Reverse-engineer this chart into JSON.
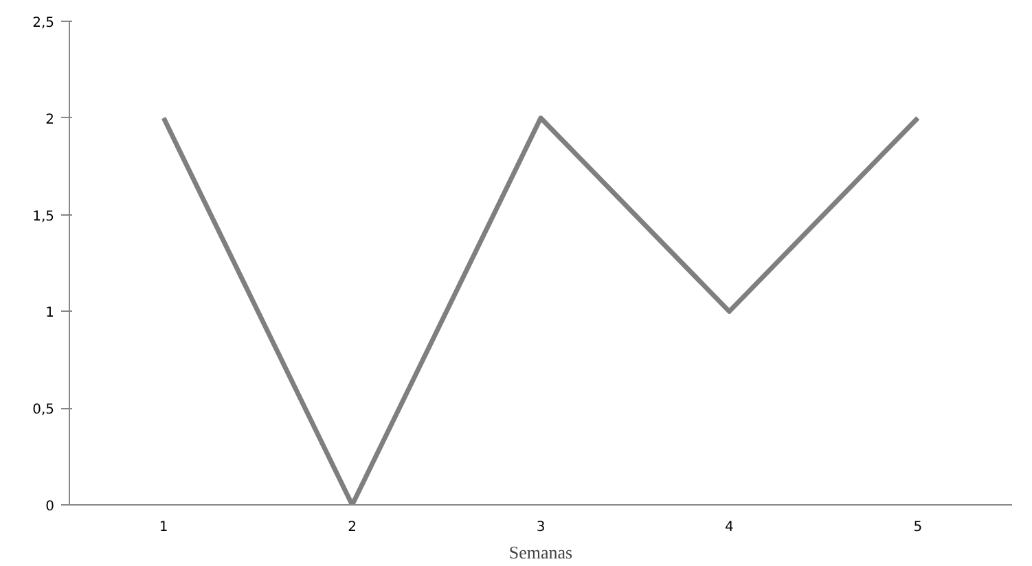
{
  "chart_data": {
    "type": "line",
    "xlabel": "Semanas",
    "categories": [
      "1",
      "2",
      "3",
      "4",
      "5"
    ],
    "series": [
      {
        "color": "#7f7f7f",
        "values": [
          2,
          0,
          2,
          1,
          2
        ]
      }
    ],
    "ylim": [
      0,
      2.5
    ],
    "yticks": [
      0,
      {
        "value": 0.5,
        "label": "0,5"
      },
      1,
      {
        "value": 1.5,
        "label": "1,5"
      },
      2,
      {
        "value": 2.5,
        "label": "2,5"
      }
    ],
    "grid": false,
    "marker": "none",
    "line_style": "solid"
  }
}
